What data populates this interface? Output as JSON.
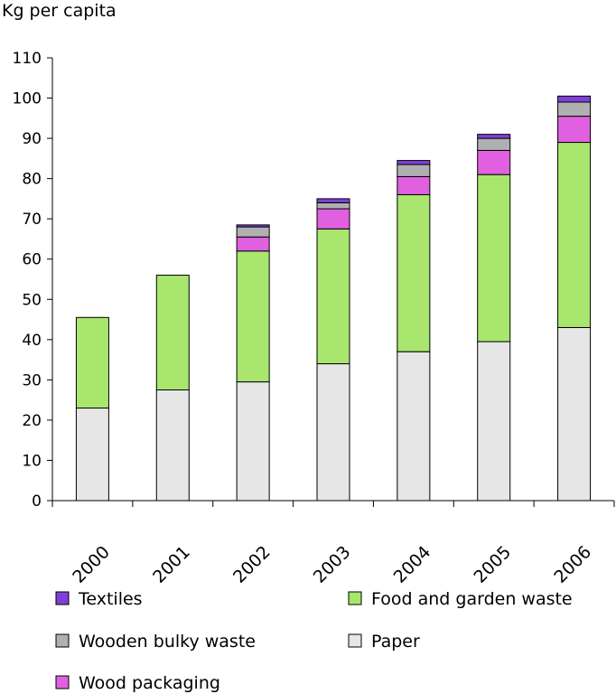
{
  "chart_data": {
    "type": "bar",
    "stacked": true,
    "title": "",
    "xlabel": "",
    "ylabel": "Kg per capita",
    "ylim": [
      0,
      110
    ],
    "yticks": [
      0,
      10,
      20,
      30,
      40,
      50,
      60,
      70,
      80,
      90,
      100,
      110
    ],
    "grid": false,
    "legend_position": "bottom",
    "categories": [
      "2000",
      "2001",
      "2002",
      "2003",
      "2004",
      "2005",
      "2006"
    ],
    "series": [
      {
        "name": "Paper",
        "color": "#e6e6e6",
        "values": [
          23,
          27.5,
          29.5,
          34,
          37,
          39.5,
          43
        ]
      },
      {
        "name": "Food and garden waste",
        "color": "#a8e66e",
        "values": [
          22.5,
          28.5,
          32.5,
          33.5,
          39,
          41.5,
          46
        ]
      },
      {
        "name": "Wood packaging",
        "color": "#e060e0",
        "values": [
          0,
          0,
          3.5,
          5,
          4.5,
          6,
          6.5
        ]
      },
      {
        "name": "Wooden bulky waste",
        "color": "#b0b0b0",
        "values": [
          0,
          0,
          2.5,
          1.5,
          3,
          3,
          3.5
        ]
      },
      {
        "name": "Textiles",
        "color": "#8040d8",
        "values": [
          0,
          0,
          0.5,
          1,
          1,
          1,
          1.5
        ]
      }
    ],
    "legend_order": [
      "Textiles",
      "Wooden bulky waste",
      "Wood packaging",
      "Food and garden waste",
      "Paper"
    ]
  }
}
